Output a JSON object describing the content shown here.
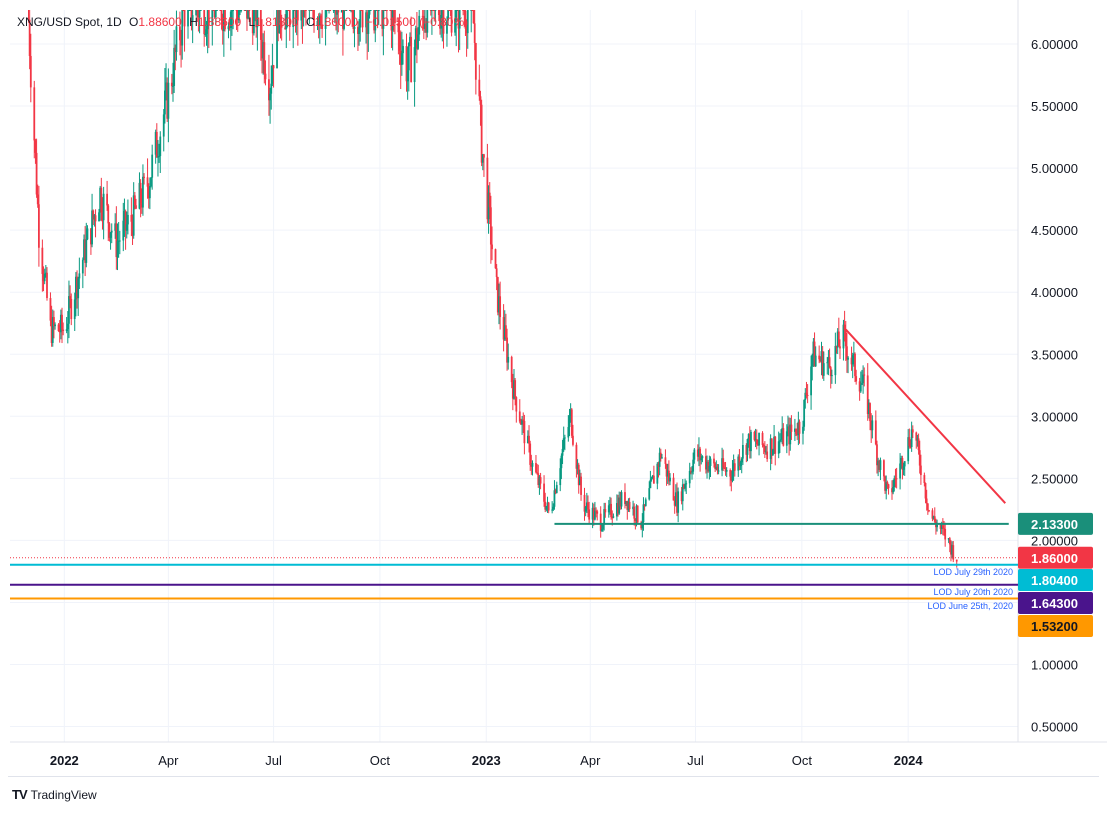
{
  "legend": {
    "symbol": "XNG/USD Spot, 1D",
    "o_label": "O",
    "o_value": "1.88600",
    "h_label": "H",
    "h_value": "1.88600",
    "l_label": "L",
    "l_value": "1.81800",
    "c_label": "C",
    "c_value": "1.86000",
    "change": "−0.01500 (−0.80%)"
  },
  "brand": {
    "logo": "TV",
    "name": "TradingView"
  },
  "colors": {
    "up": "#089981",
    "down": "#f23645",
    "grid": "#f0f3fa",
    "resistance": "#f23645",
    "support": "#1a8f7a",
    "lod1": "#00bcd4",
    "lod2": "#4a148c",
    "lod3": "#ff9800",
    "last": "#f23645"
  },
  "chart_data": {
    "type": "candlestick",
    "title": "XNG/USD Spot, 1D",
    "ylim": [
      0.25,
      6.3
    ],
    "y_ticks": [
      "6.00000",
      "5.50000",
      "5.00000",
      "4.50000",
      "4.00000",
      "3.50000",
      "3.00000",
      "2.50000",
      "2.00000",
      "1.00000",
      "0.50000"
    ],
    "x_ticks": [
      "2022",
      "Apr",
      "Jul",
      "Oct",
      "2023",
      "Apr",
      "Jul",
      "Oct",
      "2024"
    ],
    "x_bold": [
      "2022",
      "2023",
      "2024"
    ],
    "series": [
      {
        "name": "XNG/USD",
        "anchors": [
          [
            "2021-12-01",
            6.2
          ],
          [
            "2021-12-10",
            4.5
          ],
          [
            "2021-12-20",
            3.7
          ],
          [
            "2022-01-01",
            3.7
          ],
          [
            "2022-01-15",
            4.2
          ],
          [
            "2022-02-01",
            4.8
          ],
          [
            "2022-02-15",
            4.4
          ],
          [
            "2022-03-01",
            4.6
          ],
          [
            "2022-03-15",
            4.9
          ],
          [
            "2022-04-01",
            5.6
          ],
          [
            "2022-04-15",
            6.3
          ],
          [
            "2022-06-15",
            6.3
          ],
          [
            "2022-06-28",
            5.7
          ],
          [
            "2022-07-05",
            6.3
          ],
          [
            "2022-10-10",
            6.3
          ],
          [
            "2022-10-25",
            5.8
          ],
          [
            "2022-11-10",
            6.3
          ],
          [
            "2022-12-20",
            6.3
          ],
          [
            "2022-12-28",
            5.2
          ],
          [
            "2023-01-10",
            4.0
          ],
          [
            "2023-01-25",
            3.2
          ],
          [
            "2023-02-10",
            2.6
          ],
          [
            "2023-02-25",
            2.2
          ],
          [
            "2023-03-05",
            2.6
          ],
          [
            "2023-03-15",
            3.0
          ],
          [
            "2023-03-25",
            2.3
          ],
          [
            "2023-04-10",
            2.15
          ],
          [
            "2023-05-01",
            2.35
          ],
          [
            "2023-05-15",
            2.15
          ],
          [
            "2023-06-01",
            2.7
          ],
          [
            "2023-06-15",
            2.3
          ],
          [
            "2023-07-01",
            2.7
          ],
          [
            "2023-07-15",
            2.6
          ],
          [
            "2023-08-01",
            2.55
          ],
          [
            "2023-08-15",
            2.8
          ],
          [
            "2023-09-01",
            2.75
          ],
          [
            "2023-09-20",
            2.85
          ],
          [
            "2023-10-01",
            2.95
          ],
          [
            "2023-10-10",
            3.5
          ],
          [
            "2023-10-25",
            3.4
          ],
          [
            "2023-11-05",
            3.65
          ],
          [
            "2023-11-15",
            3.4
          ],
          [
            "2023-11-25",
            3.2
          ],
          [
            "2023-12-05",
            2.7
          ],
          [
            "2023-12-15",
            2.35
          ],
          [
            "2023-12-25",
            2.6
          ],
          [
            "2024-01-05",
            2.9
          ],
          [
            "2024-01-12",
            2.6
          ],
          [
            "2024-01-20",
            2.2
          ],
          [
            "2024-02-01",
            2.05
          ],
          [
            "2024-02-12",
            1.86
          ]
        ]
      }
    ],
    "last_price": 1.86,
    "trendlines": [
      {
        "name": "resistance",
        "from": [
          "2023-11-08",
          3.7
        ],
        "to": [
          "2024-03-25",
          2.3
        ]
      },
      {
        "name": "support",
        "from": [
          "2023-03-01",
          2.133
        ],
        "to": [
          "2024-03-28",
          2.133
        ]
      }
    ],
    "levels": [
      {
        "name": "support",
        "value": 2.133,
        "label": "2.13300",
        "note": ""
      },
      {
        "name": "last",
        "value": 1.86,
        "label": "1.86000",
        "note": ""
      },
      {
        "name": "lod1",
        "value": 1.804,
        "label": "1.80400",
        "note": "LOD July 29th 2020"
      },
      {
        "name": "lod2",
        "value": 1.643,
        "label": "1.64300",
        "note": "LOD July 20th 2020"
      },
      {
        "name": "lod3",
        "value": 1.532,
        "label": "1.53200",
        "note": "LOD June 25th, 2020"
      }
    ]
  }
}
